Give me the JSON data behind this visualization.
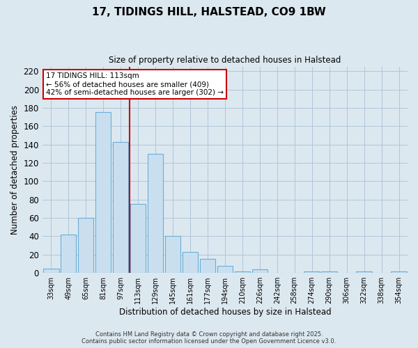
{
  "title": "17, TIDINGS HILL, HALSTEAD, CO9 1BW",
  "subtitle": "Size of property relative to detached houses in Halstead",
  "xlabel": "Distribution of detached houses by size in Halstead",
  "ylabel": "Number of detached properties",
  "categories": [
    "33sqm",
    "49sqm",
    "65sqm",
    "81sqm",
    "97sqm",
    "113sqm",
    "129sqm",
    "145sqm",
    "161sqm",
    "177sqm",
    "194sqm",
    "210sqm",
    "226sqm",
    "242sqm",
    "258sqm",
    "274sqm",
    "290sqm",
    "306sqm",
    "322sqm",
    "338sqm",
    "354sqm"
  ],
  "values": [
    5,
    42,
    60,
    175,
    143,
    75,
    130,
    40,
    23,
    15,
    8,
    2,
    4,
    0,
    0,
    2,
    2,
    0,
    2,
    0,
    2
  ],
  "bar_color": "#c9dff0",
  "bar_edge_color": "#6aaed6",
  "vline_x_index": 4.5,
  "vline_color": "#cc0000",
  "annotation_text": "17 TIDINGS HILL: 113sqm\n← 56% of detached houses are smaller (409)\n42% of semi-detached houses are larger (302) →",
  "annotation_box_color": "#cc0000",
  "ylim": [
    0,
    225
  ],
  "yticks": [
    0,
    20,
    40,
    60,
    80,
    100,
    120,
    140,
    160,
    180,
    200,
    220
  ],
  "footer": "Contains HM Land Registry data © Crown copyright and database right 2025.\nContains public sector information licensed under the Open Government Licence v3.0.",
  "background_color": "#dce8f0",
  "grid_color": "#b0c4d8"
}
